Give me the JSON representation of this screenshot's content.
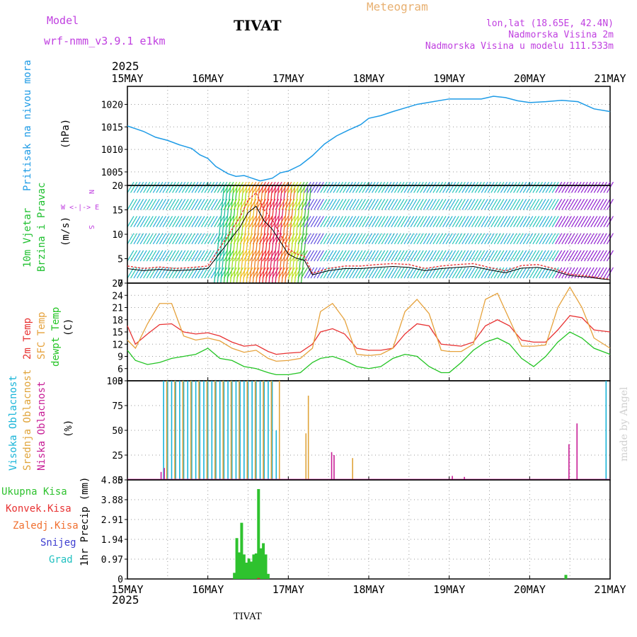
{
  "header": {
    "model_label": "Model",
    "model_name": "wrf-nmm_v3.9.1 e1km",
    "station": "TIVAT",
    "title": "Meteogram",
    "location": "lon,lat (18.65E, 42.4N)",
    "elevation": "Nadmorska Visina 2m",
    "model_elevation": "Nadmorska Visina u modelu 111.533m",
    "year_top": "2025",
    "year_bottom": "2025",
    "footer_station": "TIVAT",
    "credit": "made by Angel"
  },
  "colors": {
    "pressure": "#1e9be6",
    "t2m": "#e83232",
    "sfc": "#e6a23c",
    "dewpt": "#23c423",
    "high_cloud": "#18b4d8",
    "mid_cloud": "#e0a43a",
    "low_cloud": "#c81e96",
    "total_precip": "#2ec22e",
    "conv_precip": "#e83232",
    "frz_precip": "#f07030",
    "snow": "#3c3cd0",
    "grad": "#20c0c0",
    "wind_label": "#20c030",
    "purple_text": "#c040e0",
    "orange_text": "#e8b070"
  },
  "x_axis": {
    "days": [
      "15MAY",
      "16MAY",
      "17MAY",
      "18MAY",
      "19MAY",
      "20MAY",
      "21MAY"
    ]
  },
  "panels": {
    "pressure": {
      "label_main": "Pritisak na nivou mora",
      "label_unit": "(hPa)",
      "ticks": [
        "1005",
        "1010",
        "1015",
        "1020"
      ]
    },
    "wind": {
      "label_a": "10m Vjetar",
      "label_b": "Brzina i Pravac",
      "label_unit": "(m/s)",
      "ticks": [
        "0",
        "5",
        "10",
        "15",
        "20"
      ],
      "compass_top": "N",
      "compass_mid": "W <-|-> E",
      "compass_bottom": "S"
    },
    "temperature": {
      "label_a": "2m Temp",
      "label_b": "SFC Temp",
      "label_c": "dewpt Temp",
      "label_unit": "(C)",
      "ticks": [
        "3",
        "6",
        "9",
        "12",
        "15",
        "18",
        "21",
        "24",
        "27"
      ]
    },
    "cloud": {
      "label_a": "Visoka Oblacnost",
      "label_b": "Srednja Oblacnost",
      "label_c": "Niska Oblacnost",
      "label_unit": "(%)",
      "ticks": [
        "0",
        "25",
        "50",
        "75",
        "100"
      ]
    },
    "precip": {
      "label_main": "1hr Precip (mm)",
      "legend": [
        "Ukupna Kisa",
        "Konvek.Kisa",
        "Zaledj.Kisa",
        "Snijeg",
        "Grad"
      ],
      "ticks": [
        "0",
        "0.97",
        "1.94",
        "2.91",
        "3.88",
        "4.85"
      ]
    }
  },
  "chart_data": [
    {
      "type": "line",
      "title": "",
      "ylabel": "Pritisak na nivou mora (hPa)",
      "ylim": [
        1002,
        1024
      ],
      "x_unit": "days since 15MAY 00h",
      "series": [
        {
          "name": "Pritisak na nivou mora",
          "x": [
            0,
            0.1,
            0.2,
            0.35,
            0.5,
            0.65,
            0.8,
            0.9,
            1.0,
            1.1,
            1.25,
            1.35,
            1.45,
            1.55,
            1.65,
            1.8,
            1.9,
            2.0,
            2.15,
            2.3,
            2.45,
            2.6,
            2.75,
            2.9,
            3.0,
            3.15,
            3.3,
            3.45,
            3.6,
            3.8,
            4.0,
            4.2,
            4.4,
            4.55,
            4.7,
            4.85,
            5.0,
            5.2,
            5.4,
            5.6,
            5.8,
            6.0
          ],
          "values": [
            1015.2,
            1014.6,
            1014.0,
            1012.7,
            1012.0,
            1011.0,
            1010.2,
            1008.8,
            1008.0,
            1006.2,
            1004.6,
            1004.0,
            1004.2,
            1003.6,
            1003.0,
            1003.6,
            1004.8,
            1005.2,
            1006.5,
            1008.6,
            1011.2,
            1013.0,
            1014.3,
            1015.5,
            1016.9,
            1017.5,
            1018.4,
            1019.2,
            1020.0,
            1020.6,
            1021.2,
            1021.2,
            1021.2,
            1021.8,
            1021.5,
            1020.8,
            1020.4,
            1020.6,
            1020.9,
            1020.6,
            1019.0,
            1018.4
          ]
        }
      ]
    },
    {
      "type": "line",
      "title": "",
      "ylabel": "10m Vjetar Brzina i Pravac (m/s)",
      "ylim": [
        0,
        20
      ],
      "x_unit": "days since 15MAY 00h",
      "series": [
        {
          "name": "10m Vjetar",
          "x": [
            0,
            0.2,
            0.4,
            0.6,
            0.8,
            1.0,
            1.1,
            1.2,
            1.3,
            1.4,
            1.5,
            1.6,
            1.7,
            1.8,
            1.9,
            2.0,
            2.1,
            2.2,
            2.3,
            2.5,
            2.7,
            2.9,
            3.1,
            3.3,
            3.5,
            3.7,
            3.9,
            4.1,
            4.3,
            4.5,
            4.7,
            4.9,
            5.1,
            5.3,
            5.5,
            5.7,
            5.9,
            6.0
          ],
          "values": [
            3.5,
            3.0,
            3.3,
            3.0,
            3.2,
            3.5,
            6.0,
            8.5,
            11.0,
            13.5,
            17.0,
            18.5,
            15.0,
            13.0,
            10.0,
            7.0,
            6.0,
            5.5,
            2.0,
            3.0,
            3.5,
            3.5,
            3.8,
            4.0,
            3.8,
            3.0,
            3.5,
            3.8,
            4.0,
            3.2,
            2.5,
            3.6,
            3.8,
            3.0,
            1.8,
            1.5,
            1.0,
            0.8
          ]
        }
      ]
    },
    {
      "type": "line",
      "title": "",
      "ylabel": "Temp (C)",
      "ylim": [
        3,
        27
      ],
      "x_unit": "days since 15MAY 00h",
      "series": [
        {
          "name": "2m Temp",
          "x": [
            0,
            0.1,
            0.25,
            0.4,
            0.55,
            0.7,
            0.85,
            1.0,
            1.15,
            1.3,
            1.45,
            1.6,
            1.75,
            1.85,
            2.0,
            2.15,
            2.3,
            2.4,
            2.55,
            2.7,
            2.85,
            3.0,
            3.15,
            3.3,
            3.45,
            3.6,
            3.75,
            3.9,
            4.0,
            4.15,
            4.3,
            4.45,
            4.6,
            4.75,
            4.9,
            5.05,
            5.2,
            5.35,
            5.5,
            5.65,
            5.8,
            6.0
          ],
          "values": [
            16.5,
            12.0,
            14.5,
            16.8,
            17.0,
            15.0,
            14.5,
            14.8,
            14.0,
            12.5,
            11.5,
            11.8,
            10.2,
            9.5,
            9.8,
            10.0,
            12.0,
            15.0,
            15.8,
            14.5,
            11.0,
            10.5,
            10.5,
            11.0,
            14.5,
            17.0,
            16.5,
            12.0,
            11.8,
            11.5,
            12.5,
            16.5,
            18.0,
            16.5,
            13.0,
            12.5,
            12.5,
            15.5,
            19.0,
            18.5,
            15.5,
            15.0
          ]
        },
        {
          "name": "SFC Temp",
          "x": [
            0,
            0.1,
            0.25,
            0.4,
            0.55,
            0.7,
            0.85,
            1.0,
            1.15,
            1.3,
            1.45,
            1.6,
            1.75,
            1.85,
            2.0,
            2.15,
            2.3,
            2.4,
            2.55,
            2.7,
            2.85,
            3.0,
            3.15,
            3.3,
            3.45,
            3.6,
            3.75,
            3.9,
            4.0,
            4.15,
            4.3,
            4.45,
            4.6,
            4.75,
            4.9,
            5.05,
            5.2,
            5.35,
            5.5,
            5.65,
            5.8,
            6.0
          ],
          "values": [
            13.0,
            11.0,
            17.0,
            22.0,
            22.0,
            14.0,
            13.0,
            13.5,
            12.8,
            11.0,
            10.0,
            10.5,
            8.5,
            7.8,
            8.0,
            8.5,
            11.0,
            20.0,
            22.0,
            18.0,
            9.5,
            9.2,
            9.5,
            11.0,
            20.0,
            23.0,
            19.5,
            10.5,
            10.2,
            10.2,
            12.0,
            23.0,
            24.5,
            18.0,
            11.5,
            11.5,
            11.8,
            21.0,
            26.0,
            21.0,
            13.5,
            11.0
          ]
        },
        {
          "name": "dewpt Temp",
          "x": [
            0,
            0.1,
            0.25,
            0.4,
            0.55,
            0.7,
            0.85,
            1.0,
            1.15,
            1.3,
            1.45,
            1.6,
            1.75,
            1.85,
            2.0,
            2.15,
            2.3,
            2.4,
            2.55,
            2.7,
            2.85,
            3.0,
            3.15,
            3.3,
            3.45,
            3.6,
            3.75,
            3.9,
            4.0,
            4.15,
            4.3,
            4.45,
            4.6,
            4.75,
            4.9,
            5.05,
            5.2,
            5.35,
            5.5,
            5.65,
            5.8,
            6.0
          ],
          "values": [
            10.5,
            8.0,
            7.0,
            7.5,
            8.5,
            9.0,
            9.5,
            11.0,
            8.5,
            8.0,
            6.5,
            6.0,
            5.0,
            4.5,
            4.5,
            5.0,
            7.5,
            8.5,
            9.0,
            8.0,
            6.5,
            6.0,
            6.5,
            8.5,
            9.5,
            9.0,
            6.5,
            5.0,
            5.0,
            7.5,
            10.5,
            12.5,
            13.5,
            12.0,
            8.5,
            6.5,
            9.0,
            12.5,
            15.0,
            13.5,
            11.0,
            9.5
          ]
        }
      ]
    },
    {
      "type": "bar",
      "title": "",
      "ylabel": "Oblacnost (%)",
      "ylim": [
        0,
        100
      ],
      "x_unit": "days since 15MAY 00h",
      "series": [
        {
          "name": "Visoka Oblacnost",
          "x": [
            0.45,
            0.5,
            0.55,
            0.6,
            0.65,
            0.7,
            0.75,
            0.8,
            0.85,
            0.9,
            0.95,
            1.0,
            1.05,
            1.1,
            1.15,
            1.2,
            1.25,
            1.3,
            1.35,
            1.4,
            1.45,
            1.5,
            1.55,
            1.6,
            1.65,
            1.7,
            1.75,
            1.8,
            1.85,
            5.95
          ],
          "values": [
            100,
            100,
            100,
            100,
            100,
            100,
            100,
            100,
            100,
            100,
            100,
            100,
            100,
            100,
            100,
            100,
            100,
            100,
            100,
            100,
            100,
            100,
            100,
            100,
            100,
            100,
            100,
            100,
            50,
            100
          ]
        },
        {
          "name": "Srednja Oblacnost",
          "x": [
            0.47,
            0.57,
            0.67,
            0.77,
            0.87,
            0.97,
            1.07,
            1.17,
            1.27,
            1.37,
            1.47,
            1.57,
            1.67,
            1.77,
            1.87,
            2.2,
            2.23,
            2.78
          ],
          "values": [
            100,
            100,
            100,
            100,
            100,
            100,
            100,
            100,
            100,
            100,
            100,
            100,
            100,
            100,
            100,
            47,
            85,
            22
          ]
        },
        {
          "name": "Niska Oblacnost",
          "x": [
            0.38,
            0.42,
            2.5,
            2.53,
            4.0,
            4.15,
            5.45,
            5.55
          ],
          "values": [
            8,
            12,
            28,
            25,
            4,
            3,
            36,
            57
          ]
        }
      ]
    },
    {
      "type": "bar",
      "title": "",
      "ylabel": "1hr Precip (mm)",
      "ylim": [
        0,
        4.85
      ],
      "x_unit": "days since 15MAY 00h",
      "series": [
        {
          "name": "Ukupna Kisa",
          "x": [
            1.33,
            1.36,
            1.39,
            1.42,
            1.45,
            1.48,
            1.51,
            1.54,
            1.57,
            1.6,
            1.63,
            1.66,
            1.69,
            1.72,
            1.75,
            5.45
          ],
          "values": [
            0.3,
            2.0,
            1.3,
            2.75,
            1.2,
            0.8,
            1.0,
            0.85,
            1.2,
            1.25,
            4.4,
            1.5,
            1.75,
            1.2,
            0.25,
            0.2
          ]
        },
        {
          "name": "Konvek.Kisa",
          "x": [
            1.63
          ],
          "values": [
            0.05
          ]
        }
      ]
    }
  ]
}
